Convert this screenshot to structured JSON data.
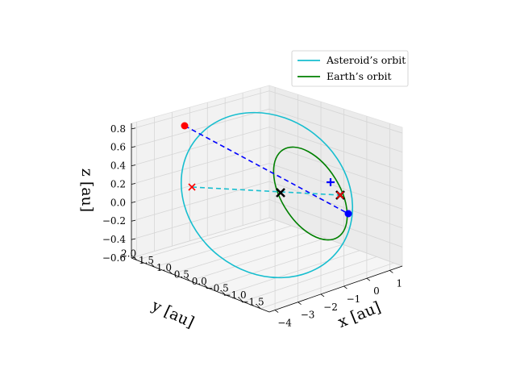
{
  "chart_data": {
    "type": "line",
    "projection": "3d",
    "title": "",
    "xlabel": "x [au]",
    "ylabel": "y [au]",
    "zlabel": "z [au]",
    "xlim": [
      -4,
      1
    ],
    "ylim": [
      -1.5,
      2.0
    ],
    "zlim": [
      -0.6,
      0.8
    ],
    "x_ticks": [
      "−4",
      "−3",
      "−2",
      "−1",
      "0",
      "1"
    ],
    "y_ticks": [
      "−1.5",
      "−1.0",
      "−0.5",
      "0.0",
      "0.5",
      "1.0",
      "1.5",
      "2.0"
    ],
    "z_ticks": [
      "−0.6",
      "−0.4",
      "−0.2",
      "0.0",
      "0.2",
      "0.4",
      "0.6",
      "0.8"
    ],
    "grid": true,
    "legend_position": "upper-right",
    "series": [
      {
        "name": "Asteroid’s orbit",
        "color": "#17becf",
        "style": "solid"
      },
      {
        "name": "Earth’s orbit",
        "color": "#008000",
        "style": "solid"
      }
    ],
    "markers": [
      {
        "symbol": "red-dot",
        "color": "#ff0000"
      },
      {
        "symbol": "blue-dot",
        "color": "#0000ff"
      },
      {
        "symbol": "blue-plus",
        "color": "#0000ff"
      },
      {
        "symbol": "black-x",
        "color": "#000000"
      },
      {
        "symbol": "black-x",
        "color": "#000000"
      },
      {
        "symbol": "red-x",
        "color": "#ff0000"
      },
      {
        "symbol": "red-x",
        "color": "#ff0000"
      }
    ],
    "connectors": [
      {
        "style": "dashed",
        "color": "#0000ff"
      },
      {
        "style": "dashed",
        "color": "#17becf"
      }
    ]
  }
}
